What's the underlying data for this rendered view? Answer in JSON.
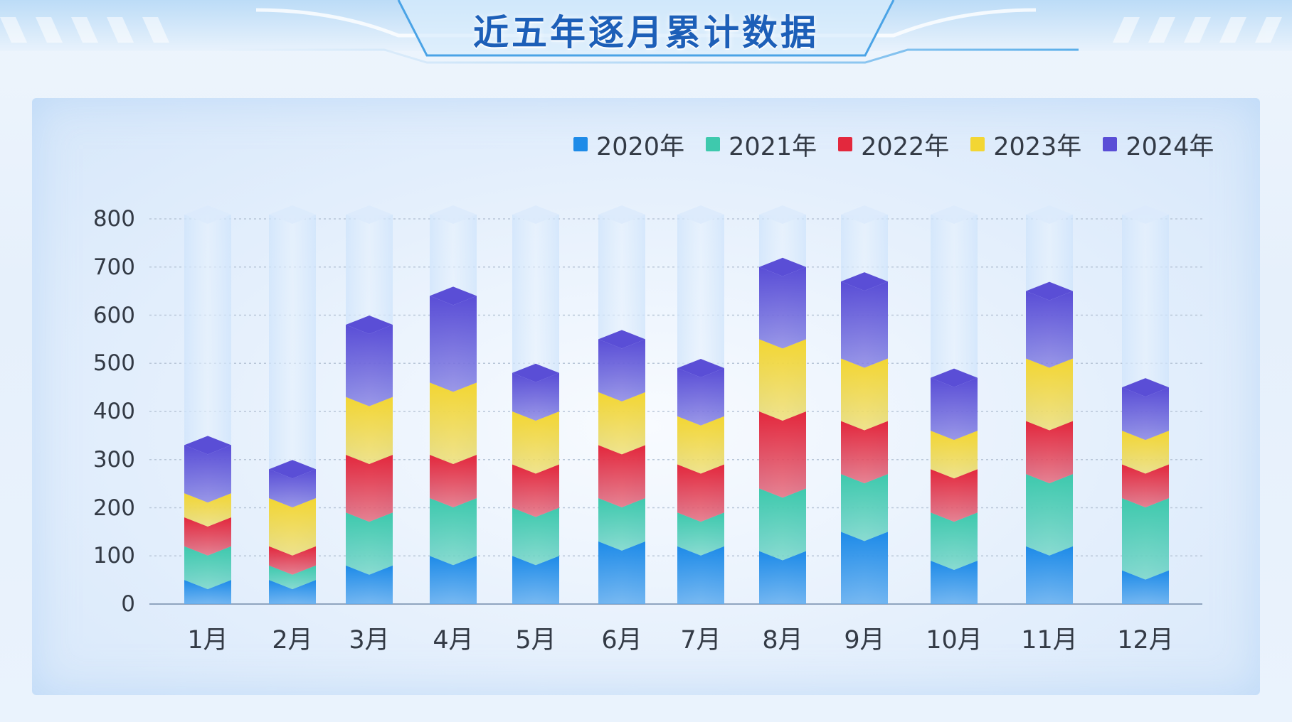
{
  "title": "近五年逐月累计数据",
  "colors": {
    "2020": "#1e8be8",
    "2021": "#3ec9ad",
    "2022": "#e3283d",
    "2023": "#f3d633",
    "2024": "#5a4ed6",
    "track": "#cfe4fb"
  },
  "chart_data": {
    "type": "bar",
    "stacked": true,
    "title": "近五年逐月累计数据",
    "categories": [
      "1月",
      "2月",
      "3月",
      "4月",
      "5月",
      "6月",
      "7月",
      "8月",
      "9月",
      "10月",
      "11月",
      "12月"
    ],
    "series": [
      {
        "name": "2020年",
        "values": [
          50,
          50,
          80,
          100,
          100,
          130,
          120,
          110,
          150,
          90,
          120,
          70
        ]
      },
      {
        "name": "2021年",
        "values": [
          70,
          30,
          110,
          120,
          100,
          90,
          70,
          130,
          120,
          100,
          150,
          150
        ]
      },
      {
        "name": "2022年",
        "values": [
          60,
          40,
          120,
          90,
          90,
          110,
          100,
          160,
          110,
          90,
          110,
          70
        ]
      },
      {
        "name": "2023年",
        "values": [
          50,
          100,
          120,
          150,
          110,
          110,
          100,
          150,
          130,
          80,
          130,
          70
        ]
      },
      {
        "name": "2024年",
        "values": [
          100,
          60,
          150,
          180,
          80,
          110,
          100,
          150,
          160,
          110,
          140,
          90
        ]
      }
    ],
    "ylim": [
      0,
      800
    ],
    "yticks": [
      0,
      100,
      200,
      300,
      400,
      500,
      600,
      700,
      800
    ],
    "grid": true,
    "legend_position": "top-right"
  }
}
